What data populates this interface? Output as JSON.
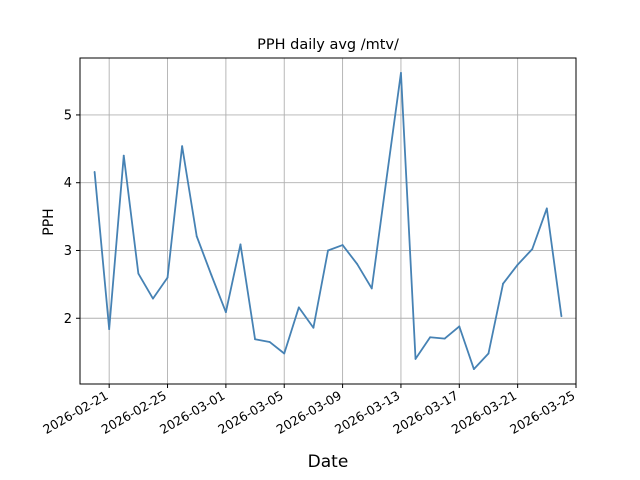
{
  "chart_data": {
    "type": "line",
    "title": "PPH daily avg /mtv/",
    "xlabel": "Date",
    "ylabel": "PPH",
    "x_type": "date",
    "xlim": [
      "2026-02-19",
      "2026-03-25"
    ],
    "ylim": [
      1.03,
      5.84
    ],
    "x_ticks": [
      "2026-02-21",
      "2026-02-25",
      "2026-03-01",
      "2026-03-05",
      "2026-03-09",
      "2026-03-13",
      "2026-03-17",
      "2026-03-21",
      "2026-03-25"
    ],
    "y_ticks": [
      2,
      3,
      4,
      5
    ],
    "grid": true,
    "series": [
      {
        "color": "#4682b4",
        "x": [
          "2026-02-20",
          "2026-02-21",
          "2026-02-22",
          "2026-02-23",
          "2026-02-24",
          "2026-02-25",
          "2026-02-26",
          "2026-02-27",
          "2026-02-28",
          "2026-03-01",
          "2026-03-02",
          "2026-03-03",
          "2026-03-04",
          "2026-03-05",
          "2026-03-06",
          "2026-03-07",
          "2026-03-08",
          "2026-03-09",
          "2026-03-10",
          "2026-03-11",
          "2026-03-12",
          "2026-03-13",
          "2026-03-14",
          "2026-03-15",
          "2026-03-16",
          "2026-03-17",
          "2026-03-18",
          "2026-03-19",
          "2026-03-20",
          "2026-03-21",
          "2026-03-22",
          "2026-03-23",
          "2026-03-24"
        ],
        "y": [
          4.16,
          1.84,
          4.4,
          2.66,
          2.29,
          2.6,
          4.54,
          3.21,
          2.64,
          2.09,
          3.09,
          1.69,
          1.65,
          1.48,
          2.16,
          1.86,
          3.0,
          3.08,
          2.8,
          2.44,
          4.04,
          5.62,
          1.4,
          1.72,
          1.7,
          1.88,
          1.25,
          1.48,
          2.51,
          2.79,
          3.02,
          3.62,
          2.03
        ]
      }
    ]
  }
}
